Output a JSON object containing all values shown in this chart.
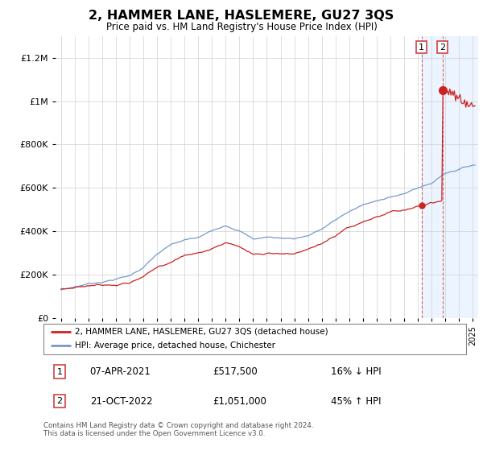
{
  "title": "2, HAMMER LANE, HASLEMERE, GU27 3QS",
  "subtitle": "Price paid vs. HM Land Registry's House Price Index (HPI)",
  "legend_line1": "2, HAMMER LANE, HASLEMERE, GU27 3QS (detached house)",
  "legend_line2": "HPI: Average price, detached house, Chichester",
  "transaction1_date": "07-APR-2021",
  "transaction1_price": 517500,
  "transaction1_label": "16% ↓ HPI",
  "transaction2_date": "21-OCT-2022",
  "transaction2_price": 1051000,
  "transaction2_label": "45% ↑ HPI",
  "footnote": "Contains HM Land Registry data © Crown copyright and database right 2024.\nThis data is licensed under the Open Government Licence v3.0.",
  "hpi_color": "#7799cc",
  "price_color": "#cc2222",
  "shade_color": "#ddeeff",
  "ylim": [
    0,
    1300000
  ],
  "yticks": [
    0,
    200000,
    400000,
    600000,
    800000,
    1000000,
    1200000
  ],
  "start_year": 1995,
  "end_year": 2025,
  "t1_year": 2021.27,
  "t2_year": 2022.8
}
